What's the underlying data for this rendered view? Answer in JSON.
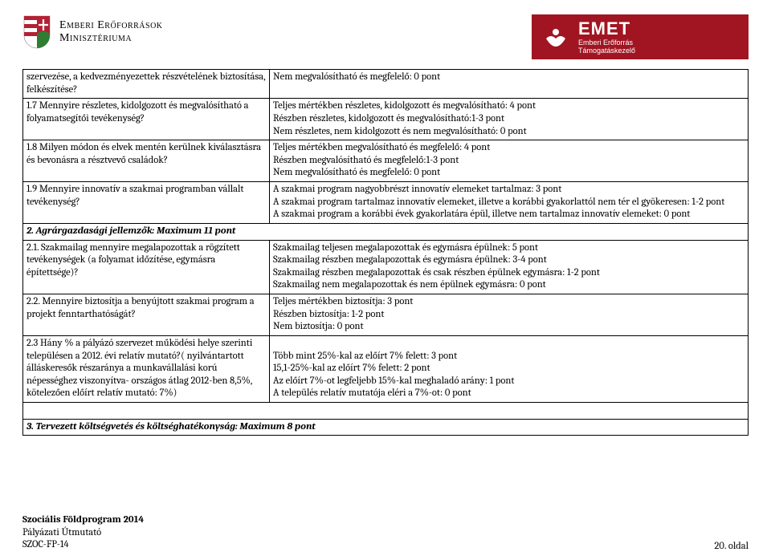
{
  "header": {
    "ministry_line1": "Emberi Erőforrások",
    "ministry_line2": "Minisztériuma",
    "emet_big": "EMET",
    "emet_small1": "Emberi Erőforrás",
    "emet_small2": "Támogatáskezelő"
  },
  "colors": {
    "emet_bg": "#a11522",
    "emet_fg": "#ffffff",
    "shield_red": "#b22234",
    "shield_green": "#2e7d32",
    "shield_white": "#ffffff"
  },
  "rows": [
    {
      "left": "szervezése, a kedvezményezettek részvételének biztosítása, felkészítése?",
      "right": "Nem megvalósítható és megfelelő: 0 pont"
    },
    {
      "left": "1.7 Mennyire részletes, kidolgozott és megvalósítható a folyamatsegítői tevékenység?",
      "right": "Teljes mértékben részletes, kidolgozott és megvalósítható: 4 pont\nRészben részletes, kidolgozott és megvalósítható:1-3 pont\nNem részletes, nem kidolgozott és nem megvalósítható: 0 pont"
    },
    {
      "left": "1.8 Milyen módon és elvek mentén kerülnek kiválasztásra és bevonásra a résztvevő családok?",
      "right": "Teljes mértékben megvalósítható és megfelelő: 4 pont\nRészben megvalósítható és megfelelő:1-3 pont\nNem megvalósítható és megfelelő: 0 pont"
    },
    {
      "left": "1.9 Mennyire innovatív a szakmai programban vállalt tevékenység?",
      "right": "A szakmai program nagyobbrészt innovatív elemeket tartalmaz: 3 pont\nA szakmai program tartalmaz innovatív elemeket, illetve a korábbi gyakorlattól nem tér el gyökeresen: 1-2 pont\nA szakmai program a korábbi évek gyakorlatára épül, illetve nem tartalmaz innovatív elemeket: 0 pont"
    }
  ],
  "section2_header": "2. Agrárgazdasági jellemzők: Maximum 11 pont",
  "rows2": [
    {
      "left": "2.1. Szakmailag mennyire megalapozottak a rögzített tevékenységek (a folyamat időzítése, egymásra építettsége)?",
      "right": "Szakmailag teljesen megalapozottak és egymásra épülnek: 5 pont\nSzakmailag részben megalapozottak és egymásra épülnek: 3-4 pont\nSzakmailag részben megalapozottak és csak részben épülnek egymásra: 1-2 pont\nSzakmailag nem megalapozottak és nem épülnek egymásra: 0 pont"
    },
    {
      "left": "2.2. Mennyire biztosítja a benyújtott szakmai program a projekt fenntarthatóságát?",
      "right": "Teljes mértékben biztosítja: 3 pont\nRészben biztosítja: 1-2 pont\nNem biztosítja: 0 pont"
    },
    {
      "left": "2.3 Hány % a pályázó szervezet működési helye szerinti településen a 2012. évi relatív mutató?( nyilvántartott álláskeresők részaránya a munkavállalási korú népességhez viszonyítva- országos átlag 2012-ben 8,5%, kötelezően előírt relatív mutató: 7%)",
      "right": "\nTöbb mint 25%-kal az előírt 7% felett: 3 pont\n15,1-25%-kal az előírt 7% felett: 2 pont\nAz előírt 7%-ot legfeljebb 15%-kal meghaladó arány: 1 pont\nA település relatív mutatója eléri a 7%-ot: 0 pont"
    }
  ],
  "section3_header": "3. Tervezett költségvetés és költséghatékonyság: Maximum 8 pont",
  "footer": {
    "title": "Szociális Földprogram 2014",
    "sub": "Pályázati Útmutató",
    "code": "SZOC-FP-14",
    "page": "20. oldal"
  }
}
